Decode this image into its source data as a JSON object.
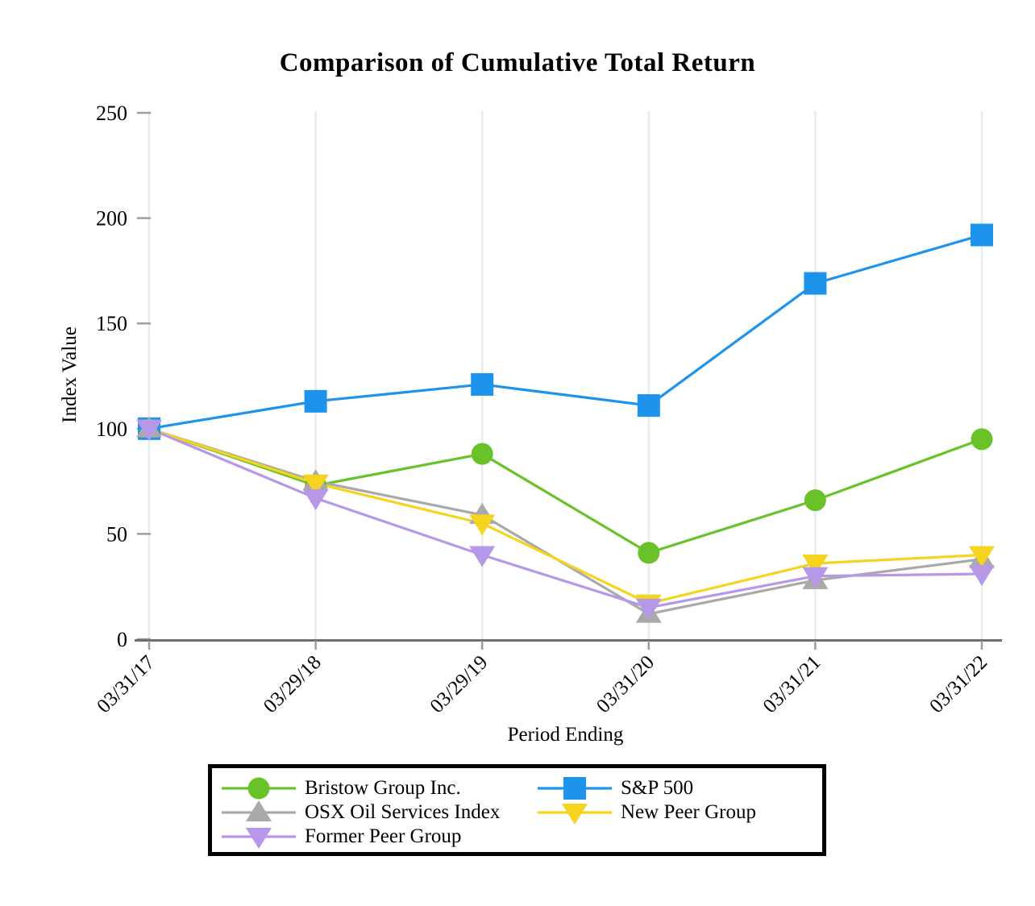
{
  "page": {
    "background": "#FFFFFF"
  },
  "chart_data": {
    "type": "line",
    "title": "Comparison of Cumulative Total Return",
    "xlabel": "Period Ending",
    "ylabel": "Index Value",
    "categories": [
      "03/31/17",
      "03/29/18",
      "03/29/19",
      "03/31/20",
      "03/31/21",
      "03/31/22"
    ],
    "ylim": [
      0,
      250
    ],
    "yticks": [
      0,
      50,
      100,
      150,
      200,
      250
    ],
    "grid": "vertical-only",
    "legend_position": "bottom-box",
    "series": [
      {
        "name": "Bristow Group Inc.",
        "marker": "circle",
        "color": "#68C228",
        "values": [
          100,
          73,
          88,
          41,
          66,
          95
        ]
      },
      {
        "name": "S&P 500",
        "marker": "square",
        "color": "#1E93EC",
        "values": [
          100,
          113,
          121,
          111,
          169,
          192
        ]
      },
      {
        "name": "OSX Oil Services Index",
        "marker": "triangle-up",
        "color": "#A9A9A9",
        "values": [
          100,
          75,
          59,
          12,
          28,
          38
        ]
      },
      {
        "name": "New Peer Group",
        "marker": "triangle-down",
        "color": "#F5D41F",
        "values": [
          100,
          74,
          55,
          17,
          36,
          40
        ]
      },
      {
        "name": "Former Peer Group",
        "marker": "triangle-down",
        "color": "#B697E8",
        "values": [
          100,
          67,
          40,
          15,
          30,
          31
        ]
      }
    ],
    "colors": {
      "grid": "#EAEAEA",
      "axis": "#6E6E6E",
      "tick": "#9E9E9E",
      "text": "#000000"
    },
    "legend_columns": [
      [
        "Bristow Group Inc.",
        "OSX Oil Services Index",
        "Former Peer Group"
      ],
      [
        "S&P 500",
        "New Peer Group"
      ]
    ]
  }
}
